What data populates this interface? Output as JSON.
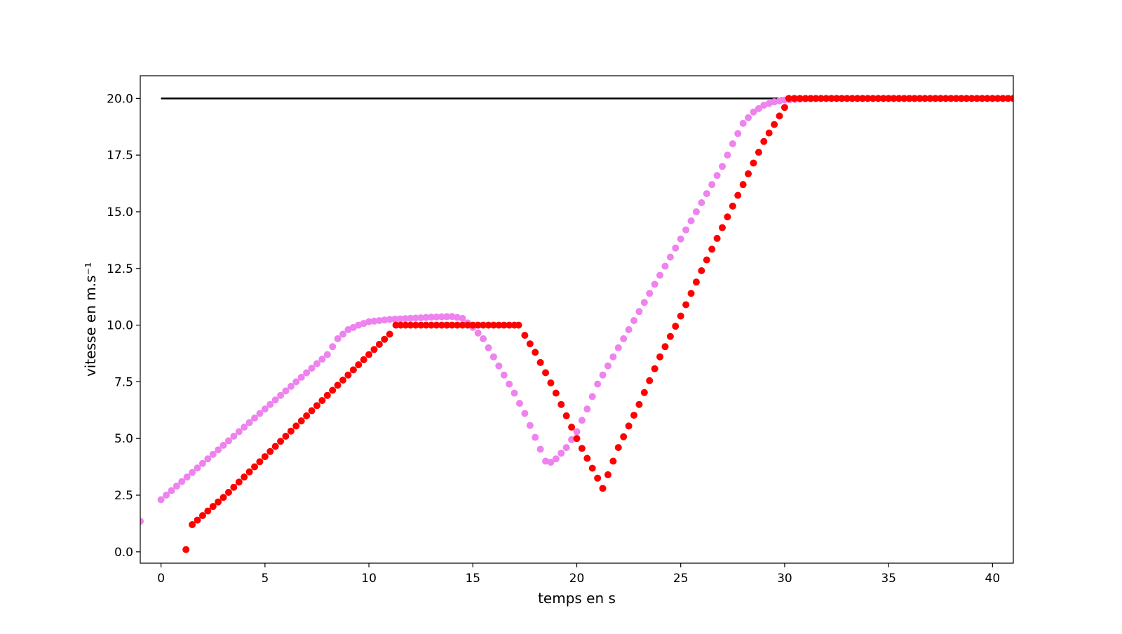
{
  "chart_data": {
    "type": "scatter",
    "title": "",
    "xlabel": "temps en s",
    "ylabel": "vitesse en m.s⁻¹",
    "xlim": [
      -1,
      41
    ],
    "ylim": [
      -0.5,
      21
    ],
    "x_ticks": [
      0,
      5,
      10,
      15,
      20,
      25,
      30,
      35,
      40
    ],
    "x_tick_labels": [
      "0",
      "5",
      "10",
      "15",
      "20",
      "25",
      "30",
      "35",
      "40"
    ],
    "y_ticks": [
      0,
      2.5,
      5,
      7.5,
      10,
      12.5,
      15,
      17.5,
      20
    ],
    "y_tick_labels": [
      "0.0",
      "2.5",
      "5.0",
      "7.5",
      "10.0",
      "12.5",
      "15.0",
      "17.5",
      "20.0"
    ],
    "grid": false,
    "series": [
      {
        "kind": "line",
        "color": "#000000",
        "x": [
          0,
          40.5
        ],
        "y": [
          20,
          20
        ]
      },
      {
        "kind": "scatter",
        "color": "#ee82ee",
        "x": [
          -1,
          0,
          1,
          2,
          3,
          4,
          5,
          6,
          7,
          8,
          8.5,
          9,
          9.5,
          10,
          11,
          12,
          13,
          14,
          14.5,
          15,
          15.5,
          16,
          16.5,
          17,
          17.5,
          18,
          18.5,
          18.75,
          19,
          19.5,
          20,
          20.5,
          21,
          21.5,
          22,
          23,
          24,
          25,
          26,
          27,
          27.5,
          28,
          28.5,
          29,
          29.5,
          30,
          31,
          32,
          35,
          38,
          40,
          41
        ],
        "y": [
          1.35,
          2.3,
          3.1,
          3.9,
          4.7,
          5.5,
          6.3,
          7.1,
          7.9,
          8.7,
          9.4,
          9.8,
          10.0,
          10.15,
          10.25,
          10.3,
          10.35,
          10.38,
          10.3,
          9.9,
          9.4,
          8.6,
          7.8,
          7.0,
          6.1,
          5.05,
          4.0,
          3.95,
          4.1,
          4.6,
          5.3,
          6.3,
          7.4,
          8.2,
          9.0,
          10.6,
          12.2,
          13.8,
          15.4,
          17.0,
          18.0,
          18.9,
          19.4,
          19.7,
          19.85,
          19.93,
          19.98,
          20.0,
          20.0,
          20.0,
          20.0,
          20.0
        ]
      },
      {
        "kind": "scatter",
        "color": "#ff0000",
        "x": [
          1.2,
          1.5,
          2,
          3,
          4,
          5,
          6,
          7,
          8,
          9,
          10,
          11,
          11.3,
          12,
          13,
          14,
          15,
          16,
          17,
          17.2,
          17.5,
          18,
          19,
          20,
          21,
          21.25,
          21.5,
          22,
          23,
          24,
          25,
          26,
          27,
          28,
          29,
          30,
          30.2,
          31,
          32,
          35,
          38,
          40,
          41
        ],
        "y": [
          0.1,
          1.2,
          1.6,
          2.4,
          3.3,
          4.2,
          5.1,
          6.0,
          6.9,
          7.8,
          8.7,
          9.6,
          10.0,
          10.0,
          10.0,
          10.0,
          10.0,
          10.0,
          10.0,
          10.0,
          9.55,
          8.8,
          7.0,
          5.0,
          3.25,
          2.8,
          3.4,
          4.6,
          6.5,
          8.6,
          10.4,
          12.4,
          14.3,
          16.2,
          18.1,
          19.6,
          20.0,
          20.0,
          20.0,
          20.0,
          20.0,
          20.0,
          20.0
        ]
      }
    ]
  }
}
